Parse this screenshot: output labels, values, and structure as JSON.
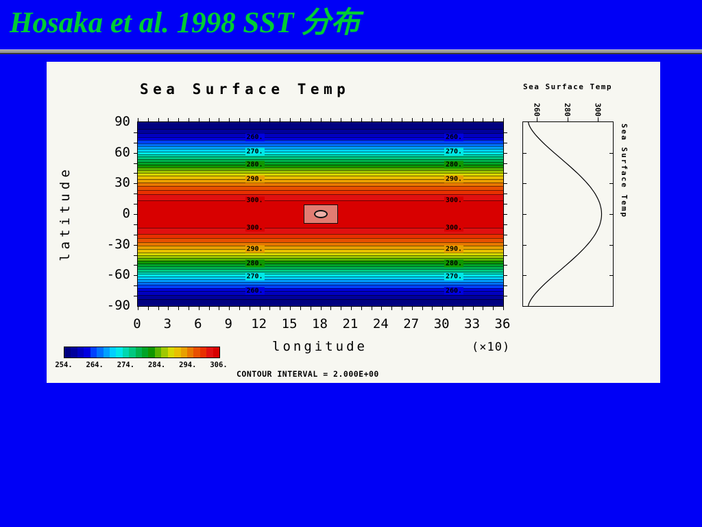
{
  "slide": {
    "title": "Hosaka et al. 1998 SST 分布",
    "title_color": "#00cc33",
    "background_color": "#0000f6",
    "panel_color": "#f7f7f1"
  },
  "figure": {
    "main": {
      "title": "Sea Surface Temp",
      "ylabel": "latitude",
      "xlabel": "longitude",
      "x_scale": "(×10)",
      "x_ticks": [
        "0",
        "3",
        "6",
        "9",
        "12",
        "15",
        "18",
        "21",
        "24",
        "27",
        "30",
        "33",
        "36"
      ],
      "y_ticks": [
        "90",
        "60",
        "30",
        "0",
        "-30",
        "-60",
        "-90"
      ],
      "contour_interval_text": "CONTOUR INTERVAL = 2.000E+00"
    },
    "side": {
      "title": "Sea Surface Temp",
      "right_label": "Sea Surface Temp",
      "x_ticks": [
        "260",
        "280",
        "300"
      ]
    }
  },
  "chart_data": [
    {
      "type": "heatmap",
      "subtype": "filled_contour_zonal_bands",
      "title": "Sea Surface Temp",
      "xlabel": "longitude",
      "x_scale_note": "(×10)",
      "ylabel": "latitude",
      "x_range": [
        0,
        36
      ],
      "x_tick_values": [
        0,
        3,
        6,
        9,
        12,
        15,
        18,
        21,
        24,
        27,
        30,
        33,
        36
      ],
      "y_range": [
        -90,
        90
      ],
      "y_tick_values": [
        90,
        60,
        30,
        0,
        -30,
        -60,
        -90
      ],
      "contour_interval": 2.0,
      "contour_interval_label": "CONTOUR INTERVAL = 2.000E+00",
      "labeled_contours": [
        260,
        270,
        280,
        290,
        300
      ],
      "field_description": "Zonally uniform SST (K): ~254 K at both poles rising smoothly to ~302 K at the equator; horizontal colored bands every 2 K",
      "sst_profile": {
        "t_pole_K": 254,
        "t_equator_K": 302,
        "shape": "T(lat) = 254 + 48*cos(lat)^1.5"
      },
      "closed_contour_feature": {
        "longitude_x10": 18,
        "latitude": 0,
        "fill": "#e27c72",
        "inner_fill": "#eeb0a8"
      },
      "colorbar": {
        "labels": [
          "254.",
          "264.",
          "274.",
          "284.",
          "294.",
          "306."
        ],
        "palette": [
          "#000080",
          "#00009c",
          "#0000c0",
          "#0000e0",
          "#0040ff",
          "#0070ff",
          "#00a0ff",
          "#00d0ff",
          "#00e8e8",
          "#00d8b0",
          "#00c880",
          "#00b450",
          "#00a428",
          "#109600",
          "#58b400",
          "#a0c800",
          "#d8d800",
          "#e8c000",
          "#e8a000",
          "#e87800",
          "#e85000",
          "#e83000",
          "#e01010",
          "#d80000"
        ]
      }
    },
    {
      "type": "line",
      "title": "Sea Surface Temp",
      "description": "Zonal-mean SST profile: temperature (K) on x-axis vs latitude on y-axis",
      "x_tick_values": [
        260,
        280,
        300
      ],
      "y_range": [
        -90,
        90
      ],
      "points_lat_sst": [
        [
          90,
          254
        ],
        [
          75,
          260
        ],
        [
          60,
          271
        ],
        [
          45,
          283
        ],
        [
          30,
          293
        ],
        [
          15,
          300
        ],
        [
          0,
          302
        ],
        [
          -15,
          300
        ],
        [
          -30,
          293
        ],
        [
          -45,
          283
        ],
        [
          -60,
          271
        ],
        [
          -75,
          260
        ],
        [
          -90,
          254
        ]
      ]
    }
  ]
}
